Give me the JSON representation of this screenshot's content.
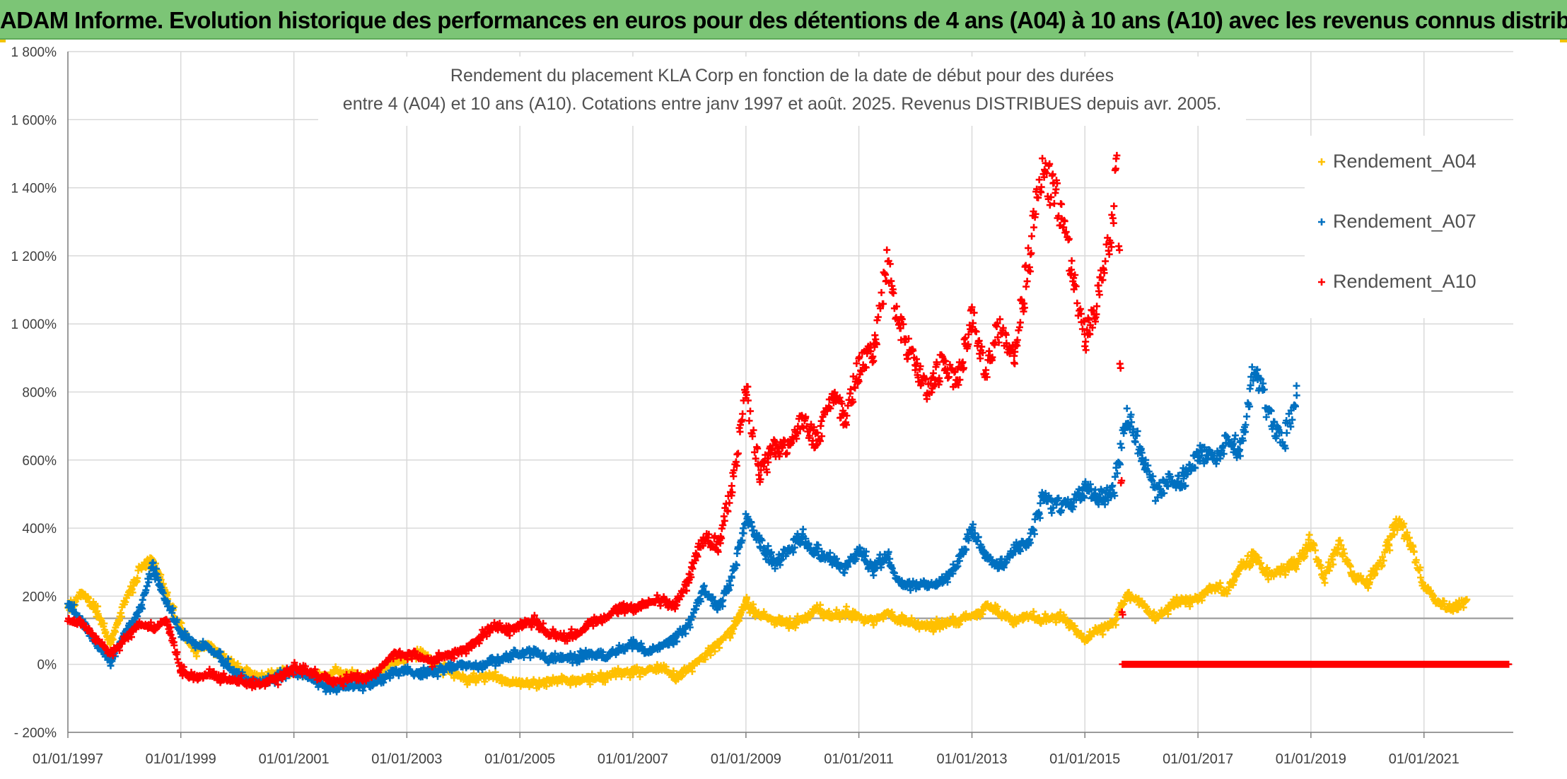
{
  "banner": {
    "title": "ADAM Informe. Evolution historique des performances en euros pour des détentions de 4 ans (A04) à 10 ans (A10) avec les revenus connus distribués"
  },
  "chart_data": {
    "type": "scatter",
    "title": [
      "Rendement du placement KLA Corp en fonction de la date de début pour des durées",
      "entre 4 (A04) et 10 ans (A10). Cotations entre janv 1997 et août. 2025. Revenus DISTRIBUES depuis avr. 2005."
    ],
    "xlabel": "",
    "ylabel": "",
    "x_axis": {
      "type": "date",
      "range": [
        "1997-01-01",
        "2022-08-01"
      ],
      "tick_labels": [
        "01/01/1997",
        "01/01/1999",
        "01/01/2001",
        "01/01/2003",
        "01/01/2005",
        "01/01/2007",
        "01/01/2009",
        "01/01/2011",
        "01/01/2013",
        "01/01/2015",
        "01/01/2017",
        "01/01/2019",
        "01/01/2021"
      ]
    },
    "y_axis": {
      "range": [
        -200,
        1800
      ],
      "unit": "%",
      "ticks": [
        -200,
        0,
        200,
        400,
        600,
        800,
        1000,
        1200,
        1400,
        1600,
        1800
      ],
      "tick_labels": [
        "- 200%",
        "0%",
        "200%",
        "400%",
        "600%",
        "800%",
        "1 000%",
        "1 200%",
        "1 400%",
        "1 600%",
        "1 800%"
      ]
    },
    "grid": true,
    "reference_line": 135,
    "legend_position": "right",
    "series": [
      {
        "name": "Rendement_A04",
        "color": "#ffc000",
        "points": [
          [
            "1997-01-01",
            170
          ],
          [
            "1997-04-01",
            210
          ],
          [
            "1997-07-01",
            160
          ],
          [
            "1997-10-01",
            60
          ],
          [
            "1998-01-01",
            180
          ],
          [
            "1998-04-01",
            270
          ],
          [
            "1998-07-01",
            310
          ],
          [
            "1998-10-01",
            200
          ],
          [
            "1999-01-01",
            100
          ],
          [
            "1999-04-01",
            40
          ],
          [
            "1999-07-01",
            60
          ],
          [
            "1999-10-01",
            20
          ],
          [
            "2000-01-01",
            -10
          ],
          [
            "2000-04-01",
            -30
          ],
          [
            "2000-07-01",
            -40
          ],
          [
            "2000-10-01",
            -20
          ],
          [
            "2001-01-01",
            -20
          ],
          [
            "2001-04-01",
            -30
          ],
          [
            "2001-07-01",
            -40
          ],
          [
            "2001-10-01",
            -20
          ],
          [
            "2002-01-01",
            -30
          ],
          [
            "2002-04-01",
            -40
          ],
          [
            "2002-07-01",
            -20
          ],
          [
            "2002-10-01",
            10
          ],
          [
            "2003-01-01",
            20
          ],
          [
            "2003-04-01",
            30
          ],
          [
            "2003-07-01",
            0
          ],
          [
            "2003-10-01",
            -20
          ],
          [
            "2004-01-01",
            -40
          ],
          [
            "2004-04-01",
            -40
          ],
          [
            "2004-07-01",
            -30
          ],
          [
            "2004-10-01",
            -50
          ],
          [
            "2005-01-01",
            -55
          ],
          [
            "2005-04-01",
            -55
          ],
          [
            "2005-07-01",
            -50
          ],
          [
            "2005-10-01",
            -45
          ],
          [
            "2006-01-01",
            -50
          ],
          [
            "2006-04-01",
            -40
          ],
          [
            "2006-07-01",
            -40
          ],
          [
            "2006-10-01",
            -25
          ],
          [
            "2007-01-01",
            -20
          ],
          [
            "2007-04-01",
            -20
          ],
          [
            "2007-07-01",
            -10
          ],
          [
            "2007-10-01",
            -40
          ],
          [
            "2008-01-01",
            -10
          ],
          [
            "2008-04-01",
            20
          ],
          [
            "2008-07-01",
            60
          ],
          [
            "2008-10-01",
            100
          ],
          [
            "2009-01-01",
            180
          ],
          [
            "2009-04-01",
            140
          ],
          [
            "2009-07-01",
            130
          ],
          [
            "2009-10-01",
            120
          ],
          [
            "2010-01-01",
            130
          ],
          [
            "2010-04-01",
            160
          ],
          [
            "2010-07-01",
            140
          ],
          [
            "2010-10-01",
            150
          ],
          [
            "2011-01-01",
            140
          ],
          [
            "2011-04-01",
            130
          ],
          [
            "2011-07-01",
            150
          ],
          [
            "2011-10-01",
            130
          ],
          [
            "2012-01-01",
            120
          ],
          [
            "2012-04-01",
            110
          ],
          [
            "2012-07-01",
            120
          ],
          [
            "2012-10-01",
            130
          ],
          [
            "2013-01-01",
            140
          ],
          [
            "2013-04-01",
            170
          ],
          [
            "2013-07-01",
            150
          ],
          [
            "2013-10-01",
            130
          ],
          [
            "2014-01-01",
            140
          ],
          [
            "2014-04-01",
            130
          ],
          [
            "2014-07-01",
            140
          ],
          [
            "2014-10-01",
            120
          ],
          [
            "2015-01-01",
            70
          ],
          [
            "2015-04-01",
            100
          ],
          [
            "2015-07-01",
            120
          ],
          [
            "2015-10-01",
            200
          ],
          [
            "2016-01-01",
            180
          ],
          [
            "2016-04-01",
            130
          ],
          [
            "2016-07-01",
            170
          ],
          [
            "2016-10-01",
            190
          ],
          [
            "2017-01-01",
            190
          ],
          [
            "2017-04-01",
            230
          ],
          [
            "2017-07-01",
            210
          ],
          [
            "2017-10-01",
            290
          ],
          [
            "2018-01-01",
            320
          ],
          [
            "2018-04-01",
            260
          ],
          [
            "2018-07-01",
            280
          ],
          [
            "2018-10-01",
            300
          ],
          [
            "2019-01-01",
            360
          ],
          [
            "2019-04-01",
            250
          ],
          [
            "2019-07-01",
            360
          ],
          [
            "2019-10-01",
            260
          ],
          [
            "2020-01-01",
            240
          ],
          [
            "2020-04-01",
            300
          ],
          [
            "2020-07-01",
            420
          ],
          [
            "2020-10-01",
            360
          ],
          [
            "2021-01-01",
            230
          ],
          [
            "2021-04-01",
            180
          ],
          [
            "2021-07-01",
            160
          ],
          [
            "2021-10-01",
            190
          ]
        ]
      },
      {
        "name": "Rendement_A07",
        "color": "#0070c0",
        "points": [
          [
            "1997-01-01",
            180
          ],
          [
            "1997-04-01",
            120
          ],
          [
            "1997-07-01",
            60
          ],
          [
            "1997-10-01",
            10
          ],
          [
            "1998-01-01",
            90
          ],
          [
            "1998-04-01",
            150
          ],
          [
            "1998-07-01",
            290
          ],
          [
            "1998-10-01",
            180
          ],
          [
            "1999-01-01",
            90
          ],
          [
            "1999-04-01",
            60
          ],
          [
            "1999-07-01",
            50
          ],
          [
            "1999-10-01",
            10
          ],
          [
            "2000-01-01",
            -30
          ],
          [
            "2000-04-01",
            -50
          ],
          [
            "2000-07-01",
            -50
          ],
          [
            "2000-10-01",
            -30
          ],
          [
            "2001-01-01",
            -20
          ],
          [
            "2001-04-01",
            -40
          ],
          [
            "2001-07-01",
            -60
          ],
          [
            "2001-10-01",
            -70
          ],
          [
            "2002-01-01",
            -60
          ],
          [
            "2002-04-01",
            -60
          ],
          [
            "2002-07-01",
            -50
          ],
          [
            "2002-10-01",
            -20
          ],
          [
            "2003-01-01",
            -20
          ],
          [
            "2003-04-01",
            -30
          ],
          [
            "2003-07-01",
            -20
          ],
          [
            "2003-10-01",
            -10
          ],
          [
            "2004-01-01",
            0
          ],
          [
            "2004-04-01",
            -10
          ],
          [
            "2004-07-01",
            10
          ],
          [
            "2004-10-01",
            20
          ],
          [
            "2005-01-01",
            30
          ],
          [
            "2005-04-01",
            40
          ],
          [
            "2005-07-01",
            10
          ],
          [
            "2005-10-01",
            20
          ],
          [
            "2006-01-01",
            20
          ],
          [
            "2006-04-01",
            30
          ],
          [
            "2006-07-01",
            20
          ],
          [
            "2006-10-01",
            40
          ],
          [
            "2007-01-01",
            60
          ],
          [
            "2007-04-01",
            40
          ],
          [
            "2007-07-01",
            50
          ],
          [
            "2007-10-01",
            80
          ],
          [
            "2008-01-01",
            120
          ],
          [
            "2008-04-01",
            220
          ],
          [
            "2008-07-01",
            160
          ],
          [
            "2008-10-01",
            250
          ],
          [
            "2009-01-01",
            430
          ],
          [
            "2009-04-01",
            360
          ],
          [
            "2009-07-01",
            290
          ],
          [
            "2009-10-01",
            340
          ],
          [
            "2010-01-01",
            370
          ],
          [
            "2010-04-01",
            330
          ],
          [
            "2010-07-01",
            300
          ],
          [
            "2010-10-01",
            280
          ],
          [
            "2011-01-01",
            330
          ],
          [
            "2011-04-01",
            280
          ],
          [
            "2011-07-01",
            320
          ],
          [
            "2011-10-01",
            230
          ],
          [
            "2012-01-01",
            240
          ],
          [
            "2012-04-01",
            230
          ],
          [
            "2012-07-01",
            240
          ],
          [
            "2012-10-01",
            300
          ],
          [
            "2013-01-01",
            400
          ],
          [
            "2013-04-01",
            320
          ],
          [
            "2013-07-01",
            290
          ],
          [
            "2013-10-01",
            340
          ],
          [
            "2014-01-01",
            360
          ],
          [
            "2014-04-01",
            490
          ],
          [
            "2014-07-01",
            470
          ],
          [
            "2014-10-01",
            460
          ],
          [
            "2015-01-01",
            520
          ],
          [
            "2015-04-01",
            490
          ],
          [
            "2015-07-01",
            510
          ],
          [
            "2015-10-01",
            730
          ],
          [
            "2016-01-01",
            620
          ],
          [
            "2016-04-01",
            500
          ],
          [
            "2016-07-01",
            540
          ],
          [
            "2016-10-01",
            540
          ],
          [
            "2017-01-01",
            620
          ],
          [
            "2017-04-01",
            600
          ],
          [
            "2017-07-01",
            650
          ],
          [
            "2017-10-01",
            630
          ],
          [
            "2018-01-01",
            880
          ],
          [
            "2018-04-01",
            740
          ],
          [
            "2018-07-01",
            650
          ],
          [
            "2018-10-01",
            790
          ]
        ]
      },
      {
        "name": "Rendement_A10",
        "color": "#ff0000",
        "points": [
          [
            "1997-01-01",
            130
          ],
          [
            "1997-04-01",
            120
          ],
          [
            "1997-07-01",
            80
          ],
          [
            "1997-10-01",
            30
          ],
          [
            "1998-01-01",
            70
          ],
          [
            "1998-04-01",
            120
          ],
          [
            "1998-07-01",
            100
          ],
          [
            "1998-10-01",
            130
          ],
          [
            "1999-01-01",
            -20
          ],
          [
            "1999-04-01",
            -40
          ],
          [
            "1999-07-01",
            -30
          ],
          [
            "1999-10-01",
            -40
          ],
          [
            "2000-01-01",
            -50
          ],
          [
            "2000-04-01",
            -60
          ],
          [
            "2000-07-01",
            -55
          ],
          [
            "2000-10-01",
            -40
          ],
          [
            "2001-01-01",
            -10
          ],
          [
            "2001-04-01",
            -20
          ],
          [
            "2001-07-01",
            -40
          ],
          [
            "2001-10-01",
            -50
          ],
          [
            "2002-01-01",
            -40
          ],
          [
            "2002-04-01",
            -40
          ],
          [
            "2002-07-01",
            -20
          ],
          [
            "2002-10-01",
            30
          ],
          [
            "2003-01-01",
            30
          ],
          [
            "2003-04-01",
            20
          ],
          [
            "2003-07-01",
            10
          ],
          [
            "2003-10-01",
            30
          ],
          [
            "2004-01-01",
            40
          ],
          [
            "2004-04-01",
            70
          ],
          [
            "2004-07-01",
            110
          ],
          [
            "2004-10-01",
            100
          ],
          [
            "2005-01-01",
            110
          ],
          [
            "2005-04-01",
            130
          ],
          [
            "2005-07-01",
            90
          ],
          [
            "2005-10-01",
            80
          ],
          [
            "2006-01-01",
            90
          ],
          [
            "2006-04-01",
            120
          ],
          [
            "2006-07-01",
            130
          ],
          [
            "2006-10-01",
            170
          ],
          [
            "2007-01-01",
            160
          ],
          [
            "2007-04-01",
            180
          ],
          [
            "2007-07-01",
            190
          ],
          [
            "2007-10-01",
            170
          ],
          [
            "2008-01-01",
            260
          ],
          [
            "2008-04-01",
            380
          ],
          [
            "2008-07-01",
            350
          ],
          [
            "2008-10-01",
            520
          ],
          [
            "2009-01-01",
            800
          ],
          [
            "2009-04-01",
            560
          ],
          [
            "2009-07-01",
            640
          ],
          [
            "2009-10-01",
            630
          ],
          [
            "2010-01-01",
            720
          ],
          [
            "2010-04-01",
            650
          ],
          [
            "2010-07-01",
            780
          ],
          [
            "2010-10-01",
            730
          ],
          [
            "2011-01-01",
            870
          ],
          [
            "2011-04-01",
            900
          ],
          [
            "2011-07-01",
            1180
          ],
          [
            "2011-10-01",
            980
          ],
          [
            "2012-01-01",
            870
          ],
          [
            "2012-04-01",
            790
          ],
          [
            "2012-07-01",
            900
          ],
          [
            "2012-10-01",
            830
          ],
          [
            "2013-01-01",
            1020
          ],
          [
            "2013-04-01",
            850
          ],
          [
            "2013-07-01",
            1000
          ],
          [
            "2013-10-01",
            900
          ],
          [
            "2014-01-01",
            1200
          ],
          [
            "2014-04-01",
            1450
          ],
          [
            "2014-07-01",
            1380
          ],
          [
            "2014-10-01",
            1180
          ],
          [
            "2015-01-01",
            950
          ],
          [
            "2015-04-01",
            1100
          ],
          [
            "2015-07-01",
            1300
          ],
          [
            "2015-08-01",
            1600
          ],
          [
            "2015-09-01",
            0
          ],
          [
            "2016-01-01",
            0
          ],
          [
            "2017-01-01",
            0
          ],
          [
            "2018-01-01",
            0
          ],
          [
            "2019-01-01",
            0
          ],
          [
            "2020-01-01",
            0
          ],
          [
            "2021-01-01",
            0
          ],
          [
            "2022-07-01",
            0
          ]
        ]
      }
    ]
  }
}
